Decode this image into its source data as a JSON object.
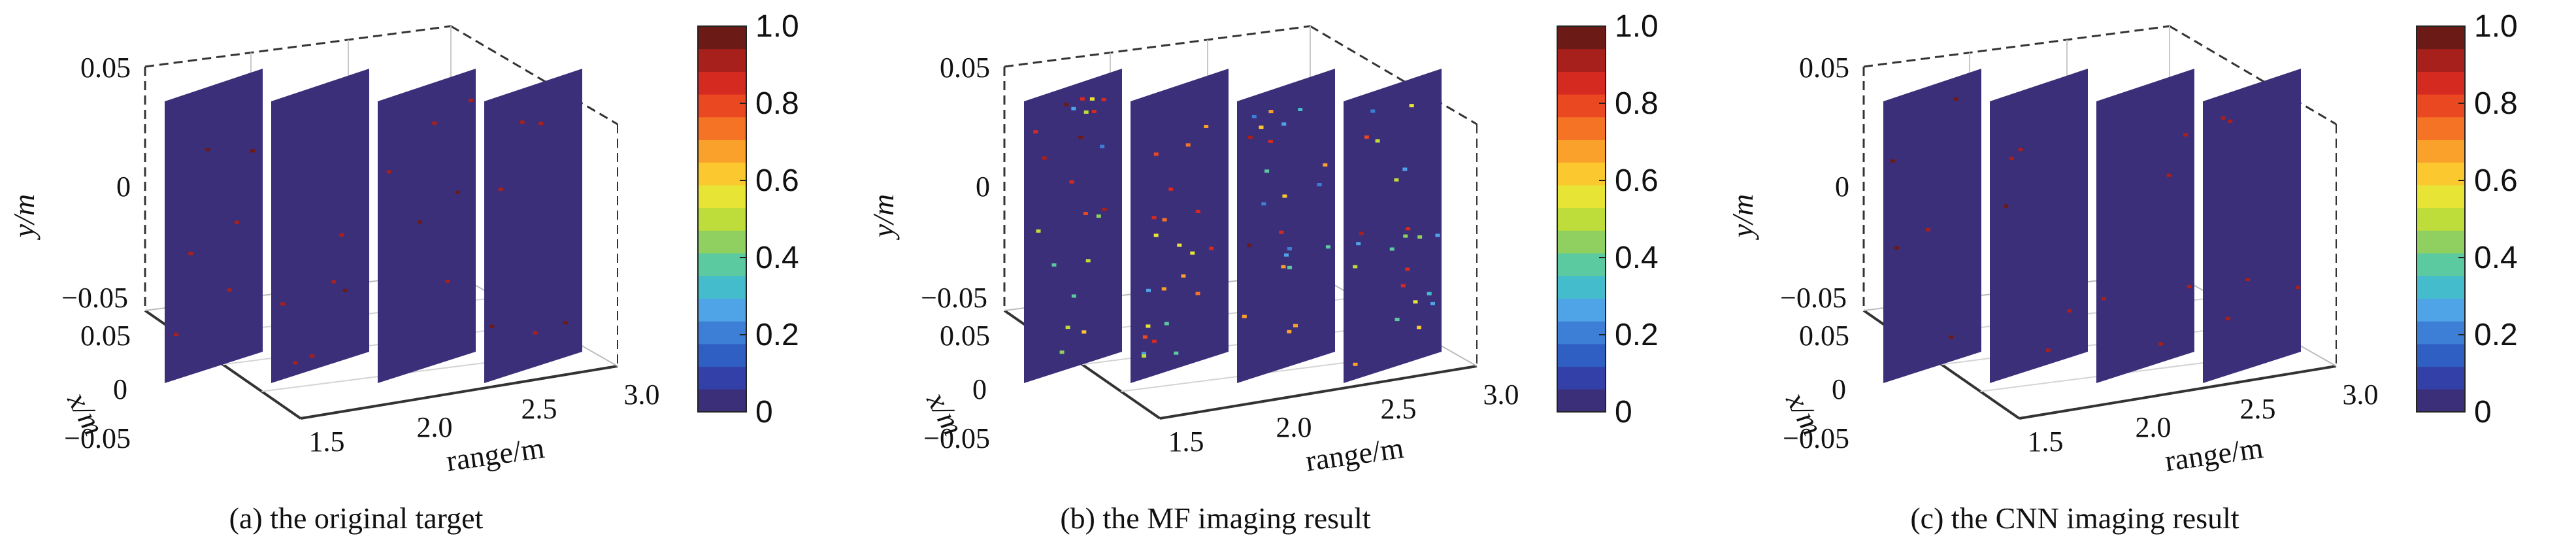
{
  "colormap": [
    "#3b2f7a",
    "#3340a8",
    "#2f5fc2",
    "#3d7fd6",
    "#4fa4e8",
    "#44bccc",
    "#5ccaa0",
    "#8fd060",
    "#bedc3a",
    "#e8e436",
    "#fbc82f",
    "#f9a12b",
    "#f57324",
    "#ea4820",
    "#d52a20",
    "#a8201c",
    "#6b1a16"
  ],
  "charts": [
    {
      "id": "a",
      "caption": "(a) the original target",
      "chart_data": {
        "type": "3d-scatter-planes",
        "caption": "(a) the original target",
        "xlabel": "x/m",
        "ylabel": "y/m",
        "zlabel": "range/m",
        "x_ticks": [
          "0.05",
          "0",
          "−0.05"
        ],
        "y_ticks": [
          "0.05",
          "0",
          "−0.05"
        ],
        "range_ticks": [
          "1.5",
          "2.0",
          "2.5",
          "3.0"
        ],
        "colorbar_ticks": [
          "1.0",
          "0.8",
          "0.6",
          "0.4",
          "0.2",
          "0"
        ],
        "colorbar_range": [
          0,
          1
        ],
        "planes_range_m": [
          1.6,
          2.0,
          2.4,
          2.8
        ],
        "background_value": 0,
        "scatter_density": 6,
        "scatter_values": [
          0.9,
          1.0
        ]
      }
    },
    {
      "id": "b",
      "caption": "(b) the MF imaging result",
      "chart_data": {
        "type": "3d-scatter-planes",
        "caption": "(b) the MF imaging result",
        "xlabel": "x/m",
        "ylabel": "y/m",
        "zlabel": "range/m",
        "x_ticks": [
          "0.05",
          "0",
          "−0.05"
        ],
        "y_ticks": [
          "0.05",
          "0",
          "−0.05"
        ],
        "range_ticks": [
          "1.5",
          "2.0",
          "2.5",
          "3.0"
        ],
        "colorbar_ticks": [
          "1.0",
          "0.8",
          "0.6",
          "0.4",
          "0.2",
          "0"
        ],
        "colorbar_range": [
          0,
          1
        ],
        "planes_range_m": [
          1.6,
          2.0,
          2.4,
          2.8
        ],
        "background_value": 0,
        "scatter_density": 22,
        "scatter_values": [
          0.2,
          1.0
        ]
      }
    },
    {
      "id": "c",
      "caption": "(c) the CNN imaging result",
      "chart_data": {
        "type": "3d-scatter-planes",
        "caption": "(c) the CNN imaging result",
        "xlabel": "x/m",
        "ylabel": "y/m",
        "zlabel": "range/m",
        "x_ticks": [
          "0.05",
          "0",
          "−0.05"
        ],
        "y_ticks": [
          "0.05",
          "0",
          "−0.05"
        ],
        "range_ticks": [
          "1.5",
          "2.0",
          "2.5",
          "3.0"
        ],
        "colorbar_ticks": [
          "1.0",
          "0.8",
          "0.6",
          "0.4",
          "0.2",
          "0"
        ],
        "colorbar_range": [
          0,
          1
        ],
        "planes_range_m": [
          1.6,
          2.0,
          2.4,
          2.8
        ],
        "background_value": 0,
        "scatter_density": 5,
        "scatter_values": [
          0.9,
          1.0
        ]
      }
    }
  ]
}
